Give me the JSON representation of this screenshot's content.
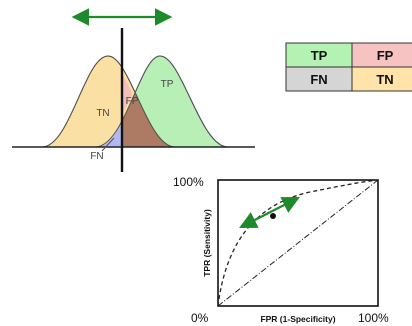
{
  "distributions": {
    "tn_label": "TN",
    "fp_label": "FP",
    "tp_label": "TP",
    "fn_label": "FN"
  },
  "confusion_matrix": {
    "cells": [
      {
        "text": "TP",
        "color": "#b3f2b3"
      },
      {
        "text": "FP",
        "color": "#f7c2c2"
      },
      {
        "text": "FN",
        "color": "#d5d5d5"
      },
      {
        "text": "TN",
        "color": "#ffe3a8"
      }
    ]
  },
  "roc": {
    "y_top_label": "100%",
    "y_bottom_label": "0%",
    "x_right_label": "100%",
    "ylabel": "TPR (Sensitivity)",
    "xlabel": "FPR (1-Specificity)"
  },
  "colors": {
    "tn_fill": "#fbe0a4",
    "tp_fill": "#b7efb7",
    "fp_fill": "#f4bcbc",
    "overlap_fill": "#ad7a64",
    "fn_fill": "#b4b8f0",
    "arrow": "#1f8a2c"
  }
}
